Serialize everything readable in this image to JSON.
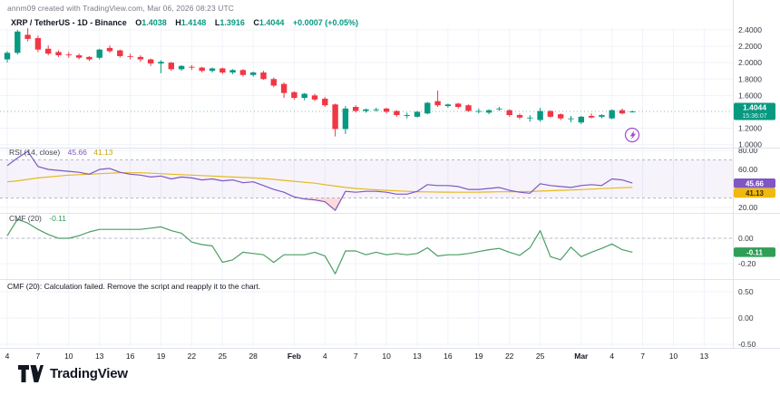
{
  "watermark": {
    "text": "annm09 created with TradingView.com, Mar 06, 2026 08:23 UTC"
  },
  "header": {
    "title": "XRP / TetherUS - 1D - Binance",
    "ohlc": {
      "o_label": "O",
      "o_value": "1.4038",
      "h_label": "H",
      "h_value": "1.4148",
      "l_label": "L",
      "l_value": "1.3916",
      "c_label": "C",
      "c_value": "1.4044",
      "change": "+0.0007 (+0.05%)"
    }
  },
  "panels": {
    "rsi": {
      "label": "RSI (14, close)",
      "value": "45.66",
      "ma_value": "41.13"
    },
    "cmf": {
      "label": "CMF (20)",
      "value": "-0.11"
    },
    "error": {
      "text": "CMF (20): Calculation failed. Remove the script and reapply it to the chart."
    }
  },
  "price_badge": {
    "value": "1.4044",
    "countdown": "15:36:07"
  },
  "logo": {
    "text": "TradingView"
  },
  "colors": {
    "up": "#089981",
    "down": "#f23645",
    "rsi_line": "#7e57c2",
    "rsi_ma_line": "#e6b91e",
    "rsi_ma_badge": "#f0b90b",
    "cmf_line": "#4a9e63",
    "cmf_badge": "#2e9e57",
    "band_fill": "rgba(126,87,194,0.07)",
    "oversold_fill": "rgba(242,54,69,0.18)",
    "grid": "#f0f3fa",
    "separator": "#e0e3eb",
    "axis_text": "#363a45",
    "flash_icon": "#a24bcf"
  },
  "chart_data": {
    "type": "candlestick",
    "title": "XRP / TetherUS - 1D - Binance",
    "legend_position": "top-left",
    "grid": true,
    "price_axis": {
      "min": 1.0,
      "max": 2.4,
      "ticks": [
        2.4,
        2.2,
        2.0,
        1.8,
        1.6,
        1.2,
        1.0
      ],
      "last_price": 1.4044
    },
    "x_ticks": [
      {
        "i": 1,
        "label": "4"
      },
      {
        "i": 4,
        "label": "7"
      },
      {
        "i": 7,
        "label": "10"
      },
      {
        "i": 10,
        "label": "13"
      },
      {
        "i": 13,
        "label": "16"
      },
      {
        "i": 16,
        "label": "19"
      },
      {
        "i": 19,
        "label": "22"
      },
      {
        "i": 22,
        "label": "25"
      },
      {
        "i": 25,
        "label": "28"
      },
      {
        "i": 29,
        "label": "Feb",
        "bold": true
      },
      {
        "i": 32,
        "label": "4"
      },
      {
        "i": 35,
        "label": "7"
      },
      {
        "i": 38,
        "label": "10"
      },
      {
        "i": 41,
        "label": "13"
      },
      {
        "i": 44,
        "label": "16"
      },
      {
        "i": 47,
        "label": "19"
      },
      {
        "i": 50,
        "label": "22"
      },
      {
        "i": 53,
        "label": "25"
      },
      {
        "i": 57,
        "label": "Mar",
        "bold": true
      },
      {
        "i": 60,
        "label": "4"
      },
      {
        "i": 63,
        "label": "7"
      },
      {
        "i": 66,
        "label": "10"
      },
      {
        "i": 69,
        "label": "13"
      }
    ],
    "candles_columns": [
      "date",
      "open",
      "high",
      "low",
      "close"
    ],
    "candles": [
      [
        "Jan 4",
        2.04,
        2.14,
        2.0,
        2.12
      ],
      [
        "Jan 5",
        2.12,
        2.4,
        2.1,
        2.38
      ],
      [
        "Jan 6",
        2.34,
        2.42,
        2.26,
        2.29
      ],
      [
        "Jan 7",
        2.3,
        2.33,
        2.13,
        2.16
      ],
      [
        "Jan 8",
        2.17,
        2.21,
        2.09,
        2.11
      ],
      [
        "Jan 9",
        2.13,
        2.15,
        2.07,
        2.09
      ],
      [
        "Jan 10",
        2.1,
        2.13,
        2.06,
        2.09
      ],
      [
        "Jan 11",
        2.09,
        2.11,
        2.04,
        2.06
      ],
      [
        "Jan 12",
        2.07,
        2.08,
        2.02,
        2.04
      ],
      [
        "Jan 13",
        2.06,
        2.17,
        2.04,
        2.16
      ],
      [
        "Jan 14",
        2.18,
        2.21,
        2.12,
        2.14
      ],
      [
        "Jan 15",
        2.15,
        2.16,
        2.06,
        2.08
      ],
      [
        "Jan 16",
        2.08,
        2.11,
        2.04,
        2.07
      ],
      [
        "Jan 17",
        2.07,
        2.09,
        2.01,
        2.04
      ],
      [
        "Jan 18",
        2.04,
        2.05,
        1.96,
        1.99
      ],
      [
        "Jan 19",
        1.99,
        2.03,
        1.87,
        2.01
      ],
      [
        "Jan 20",
        2.0,
        2.01,
        1.9,
        1.92
      ],
      [
        "Jan 21",
        1.92,
        1.97,
        1.9,
        1.96
      ],
      [
        "Jan 22",
        1.95,
        1.97,
        1.91,
        1.94
      ],
      [
        "Jan 23",
        1.94,
        1.95,
        1.88,
        1.9
      ],
      [
        "Jan 24",
        1.9,
        1.94,
        1.88,
        1.93
      ],
      [
        "Jan 25",
        1.93,
        1.94,
        1.86,
        1.88
      ],
      [
        "Jan 26",
        1.88,
        1.92,
        1.86,
        1.91
      ],
      [
        "Jan 27",
        1.91,
        1.92,
        1.83,
        1.85
      ],
      [
        "Jan 28",
        1.85,
        1.89,
        1.83,
        1.88
      ],
      [
        "Jan 29",
        1.88,
        1.9,
        1.79,
        1.8
      ],
      [
        "Jan 30",
        1.8,
        1.82,
        1.7,
        1.72
      ],
      [
        "Jan 31",
        1.74,
        1.76,
        1.57,
        1.63
      ],
      [
        "Feb 1",
        1.64,
        1.65,
        1.55,
        1.57
      ],
      [
        "Feb 2",
        1.57,
        1.63,
        1.54,
        1.62
      ],
      [
        "Feb 3",
        1.6,
        1.62,
        1.53,
        1.55
      ],
      [
        "Feb 4",
        1.56,
        1.58,
        1.46,
        1.48
      ],
      [
        "Feb 5",
        1.49,
        1.5,
        1.1,
        1.19
      ],
      [
        "Feb 6",
        1.19,
        1.47,
        1.13,
        1.44
      ],
      [
        "Feb 7",
        1.46,
        1.48,
        1.39,
        1.41
      ],
      [
        "Feb 8",
        1.41,
        1.44,
        1.39,
        1.43
      ],
      [
        "Feb 9",
        1.42,
        1.45,
        1.4,
        1.43
      ],
      [
        "Feb 10",
        1.44,
        1.45,
        1.38,
        1.4
      ],
      [
        "Feb 11",
        1.41,
        1.42,
        1.34,
        1.36
      ],
      [
        "Feb 12",
        1.36,
        1.39,
        1.32,
        1.36
      ],
      [
        "Feb 13",
        1.34,
        1.41,
        1.33,
        1.4
      ],
      [
        "Feb 14",
        1.38,
        1.52,
        1.37,
        1.51
      ],
      [
        "Feb 15",
        1.53,
        1.66,
        1.46,
        1.48
      ],
      [
        "Feb 16",
        1.47,
        1.5,
        1.45,
        1.49
      ],
      [
        "Feb 17",
        1.5,
        1.51,
        1.44,
        1.46
      ],
      [
        "Feb 18",
        1.48,
        1.49,
        1.4,
        1.41
      ],
      [
        "Feb 19",
        1.41,
        1.44,
        1.38,
        1.41
      ],
      [
        "Feb 20",
        1.39,
        1.43,
        1.37,
        1.42
      ],
      [
        "Feb 21",
        1.44,
        1.46,
        1.41,
        1.44
      ],
      [
        "Feb 22",
        1.42,
        1.43,
        1.34,
        1.36
      ],
      [
        "Feb 23",
        1.36,
        1.38,
        1.31,
        1.33
      ],
      [
        "Feb 24",
        1.33,
        1.36,
        1.28,
        1.33
      ],
      [
        "Feb 25",
        1.3,
        1.45,
        1.28,
        1.41
      ],
      [
        "Feb 26",
        1.41,
        1.42,
        1.33,
        1.34
      ],
      [
        "Feb 27",
        1.37,
        1.38,
        1.3,
        1.32
      ],
      [
        "Feb 28",
        1.32,
        1.35,
        1.27,
        1.32
      ],
      [
        "Mar 1",
        1.27,
        1.35,
        1.25,
        1.34
      ],
      [
        "Mar 2",
        1.35,
        1.38,
        1.32,
        1.33
      ],
      [
        "Mar 3",
        1.34,
        1.37,
        1.32,
        1.36
      ],
      [
        "Mar 4",
        1.32,
        1.43,
        1.31,
        1.42
      ],
      [
        "Mar 5",
        1.42,
        1.44,
        1.37,
        1.38
      ],
      [
        "Mar 6",
        1.4038,
        1.4148,
        1.3916,
        1.4044
      ]
    ],
    "rsi": {
      "label": "RSI (14, close)",
      "last": 45.66,
      "ma_last": 41.13,
      "upper": 70,
      "lower": 30,
      "axis_ticks": [
        80,
        60,
        20
      ],
      "values": [
        64,
        72,
        79,
        63,
        60,
        59,
        58,
        57,
        55,
        60,
        61,
        57,
        55,
        54,
        52,
        53,
        50,
        52,
        51,
        49,
        50,
        48,
        49,
        46,
        47,
        43,
        39,
        36,
        31,
        29,
        28,
        26,
        17,
        37,
        36,
        37,
        37,
        36,
        34,
        34,
        37,
        44,
        43,
        43,
        42,
        39,
        39,
        40,
        41,
        38,
        36,
        35,
        45,
        43,
        42,
        41,
        43,
        44,
        43,
        50,
        49,
        45.66
      ],
      "ma": [
        47,
        48,
        49.5,
        51,
        52,
        53,
        54,
        54.5,
        55,
        55.5,
        56,
        56.5,
        56.5,
        56.5,
        56,
        55.5,
        55,
        54.5,
        54,
        53.5,
        53,
        52.5,
        52,
        51.5,
        51,
        50.5,
        49.5,
        48.5,
        47.5,
        46.5,
        45.5,
        44,
        42.5,
        41,
        40,
        39.2,
        38.6,
        38,
        37.5,
        37,
        36.6,
        36.4,
        36.2,
        36.1,
        36,
        36,
        36.1,
        36.3,
        36.5,
        36.6,
        36.7,
        36.8,
        37.2,
        37.6,
        38,
        38.4,
        38.8,
        39.3,
        39.8,
        40.3,
        40.8,
        41.13
      ]
    },
    "cmf": {
      "label": "CMF (20)",
      "last": -0.11,
      "axis_ticks": [
        0.0,
        -0.2
      ],
      "values": [
        0.02,
        0.15,
        0.12,
        0.07,
        0.03,
        0.0,
        0.0,
        0.02,
        0.05,
        0.07,
        0.07,
        0.07,
        0.07,
        0.07,
        0.08,
        0.09,
        0.06,
        0.04,
        -0.03,
        -0.05,
        -0.06,
        -0.19,
        -0.17,
        -0.11,
        -0.12,
        -0.13,
        -0.19,
        -0.13,
        -0.13,
        -0.13,
        -0.11,
        -0.14,
        -0.28,
        -0.1,
        -0.1,
        -0.13,
        -0.11,
        -0.13,
        -0.12,
        -0.13,
        -0.12,
        -0.075,
        -0.14,
        -0.13,
        -0.13,
        -0.12,
        -0.105,
        -0.09,
        -0.08,
        -0.11,
        -0.135,
        -0.075,
        0.06,
        -0.145,
        -0.17,
        -0.07,
        -0.145,
        -0.11,
        -0.08,
        -0.045,
        -0.09,
        -0.11
      ]
    },
    "cmf_failed": {
      "axis_ticks": [
        0.5,
        0.0,
        -0.5
      ]
    }
  }
}
